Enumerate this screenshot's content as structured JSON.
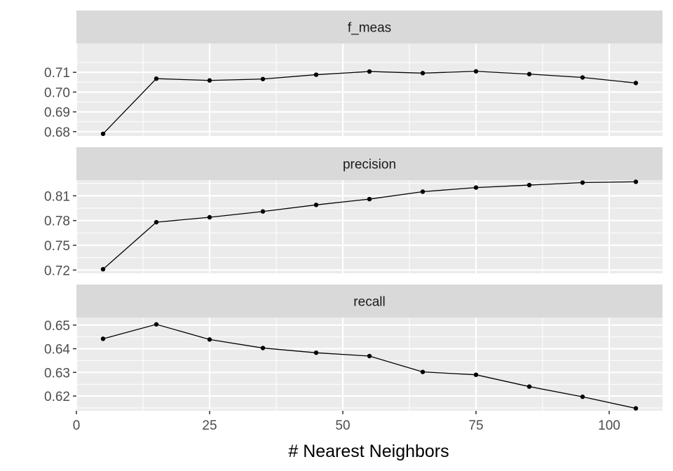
{
  "chart_data": {
    "type": "line",
    "facet": "vertical",
    "xlabel": "# Nearest Neighbors",
    "ylabel": "",
    "x": [
      5,
      15,
      25,
      35,
      45,
      55,
      65,
      75,
      85,
      95,
      105
    ],
    "xlim": [
      0,
      110
    ],
    "xticks": [
      0,
      25,
      50,
      75,
      100
    ],
    "grid": true,
    "panel_background": "#ebebeb",
    "strip_background": "#d9d9d9",
    "line_color": "#000000",
    "panels": [
      {
        "strip": "f_meas",
        "values": [
          0.6789,
          0.7068,
          0.7059,
          0.7066,
          0.7088,
          0.7104,
          0.7096,
          0.7105,
          0.7091,
          0.7074,
          0.7046
        ],
        "ylim": [
          0.6778,
          0.7246
        ],
        "yticks": [
          0.68,
          0.69,
          0.7,
          0.71
        ],
        "ytick_labels": [
          "0.68",
          "0.69",
          "0.70",
          "0.71"
        ]
      },
      {
        "strip": "precision",
        "values": [
          0.721,
          0.778,
          0.784,
          0.791,
          0.799,
          0.806,
          0.815,
          0.82,
          0.823,
          0.826,
          0.827
        ],
        "ylim": [
          0.716,
          0.829
        ],
        "yticks": [
          0.72,
          0.75,
          0.78,
          0.81
        ],
        "ytick_labels": [
          "0.72",
          "0.75",
          "0.78",
          "0.81"
        ]
      },
      {
        "strip": "recall",
        "values": [
          0.6442,
          0.6503,
          0.6439,
          0.6403,
          0.6383,
          0.6369,
          0.6302,
          0.629,
          0.624,
          0.6197,
          0.6148
        ],
        "ylim": [
          0.6138,
          0.6532
        ],
        "yticks": [
          0.62,
          0.63,
          0.64,
          0.65
        ],
        "ytick_labels": [
          "0.62",
          "0.63",
          "0.64",
          "0.65"
        ]
      }
    ]
  }
}
